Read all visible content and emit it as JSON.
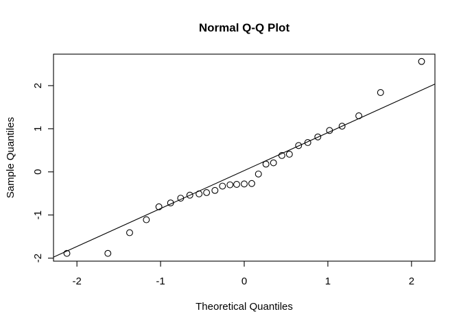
{
  "chart_data": {
    "type": "scatter",
    "title": "Normal Q-Q Plot",
    "xlabel": "Theoretical Quantiles",
    "ylabel": "Sample Quantiles",
    "xlim": [
      -2.28,
      2.28
    ],
    "ylim": [
      -2.07,
      2.73
    ],
    "x_ticks": [
      -2,
      -1,
      0,
      1,
      2
    ],
    "y_ticks": [
      -2,
      -1,
      0,
      1,
      2
    ],
    "grid": false,
    "legend": false,
    "marker": "open-circle",
    "n_points": 29,
    "points": [
      [
        -2.12,
        -1.89
      ],
      [
        -1.63,
        -1.89
      ],
      [
        -1.37,
        -1.41
      ],
      [
        -1.17,
        -1.11
      ],
      [
        -1.02,
        -0.81
      ],
      [
        -0.88,
        -0.72
      ],
      [
        -0.76,
        -0.61
      ],
      [
        -0.65,
        -0.54
      ],
      [
        -0.54,
        -0.51
      ],
      [
        -0.45,
        -0.48
      ],
      [
        -0.35,
        -0.43
      ],
      [
        -0.26,
        -0.33
      ],
      [
        -0.17,
        -0.3
      ],
      [
        -0.09,
        -0.29
      ],
      [
        0.0,
        -0.28
      ],
      [
        0.09,
        -0.27
      ],
      [
        0.17,
        -0.05
      ],
      [
        0.26,
        0.18
      ],
      [
        0.35,
        0.21
      ],
      [
        0.45,
        0.38
      ],
      [
        0.54,
        0.41
      ],
      [
        0.65,
        0.61
      ],
      [
        0.76,
        0.68
      ],
      [
        0.88,
        0.81
      ],
      [
        1.02,
        0.96
      ],
      [
        1.17,
        1.06
      ],
      [
        1.37,
        1.3
      ],
      [
        1.63,
        1.84
      ],
      [
        2.12,
        2.56
      ]
    ],
    "reference_line": {
      "type": "qqline",
      "intercept": 0.03,
      "slope": 0.88
    },
    "colors": {
      "points": "#000000",
      "line": "#000000",
      "box": "#000000",
      "text": "#000000",
      "background": "#ffffff"
    }
  }
}
